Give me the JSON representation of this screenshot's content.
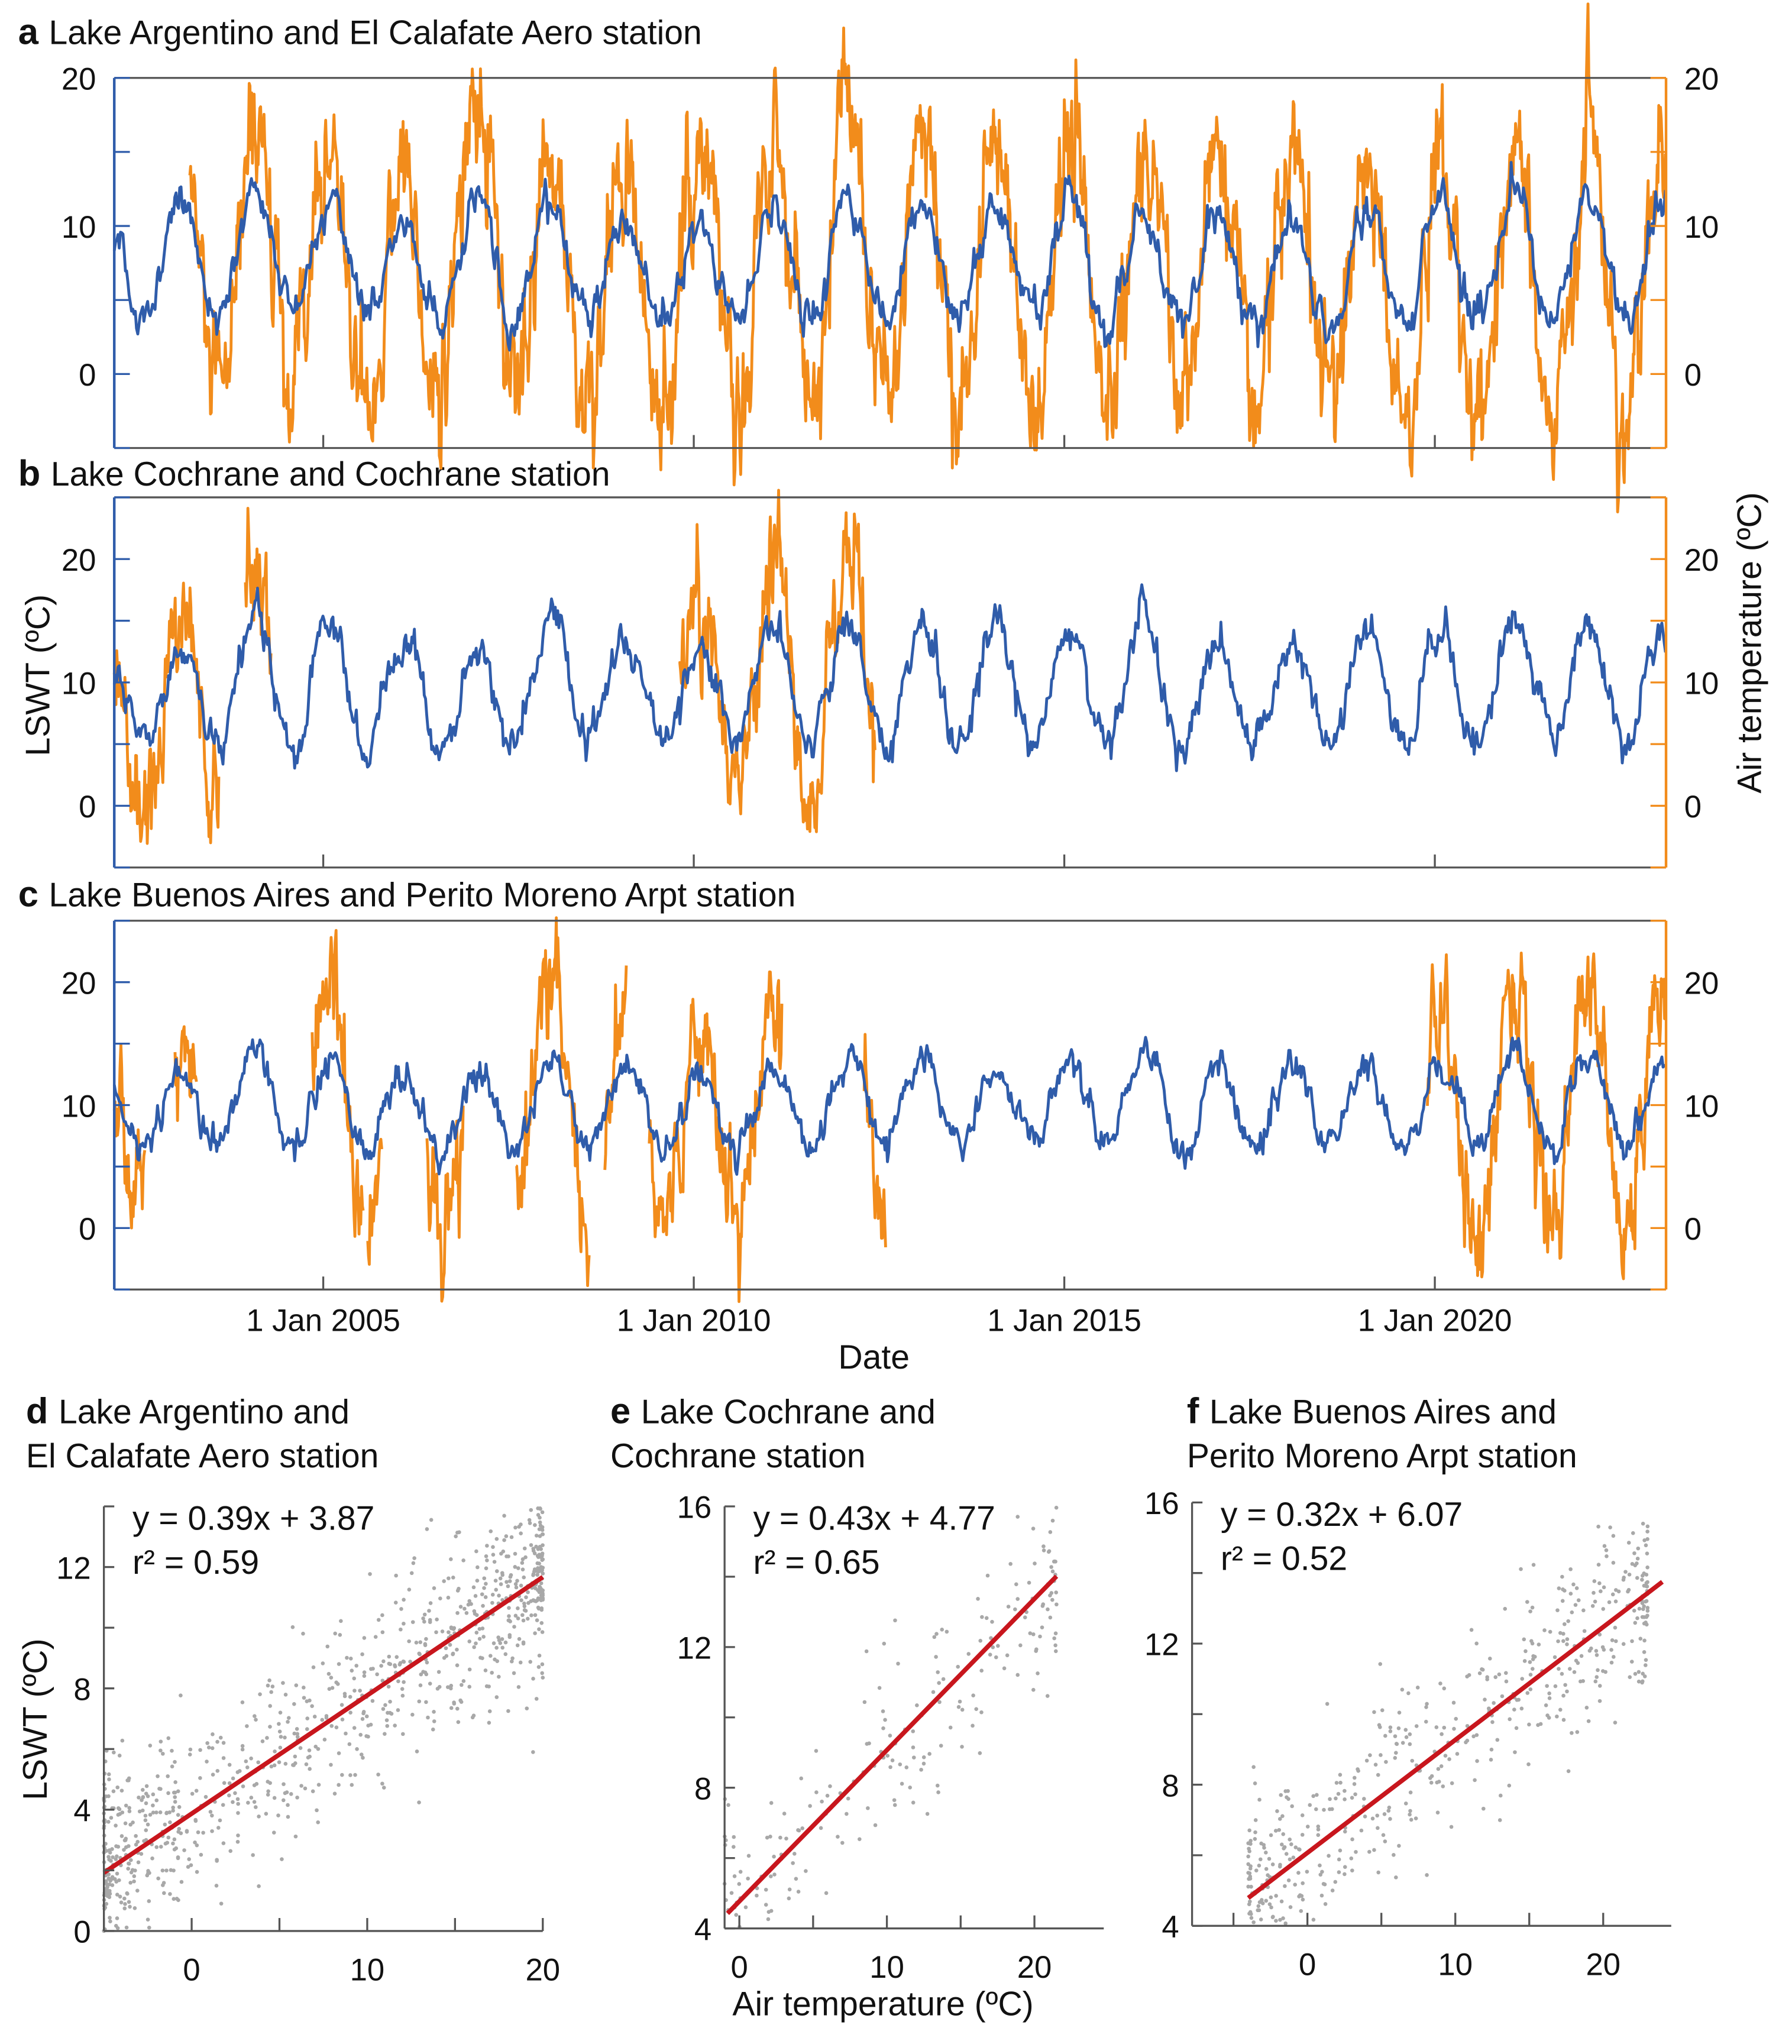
{
  "colors": {
    "lswt": "#2f5caa",
    "air": "#f28c1b",
    "fit": "#c8161d",
    "points": "#a8a8a8",
    "axis": "#555555"
  },
  "chart_data": [
    {
      "id": "a",
      "type": "line",
      "panel_label": "a",
      "title": "Lake Argentino and El Calafate Aero station",
      "xlim": [
        2002.18,
        2023.12
      ],
      "ylim_left": [
        -5,
        20
      ],
      "ylim_right": [
        -5,
        20
      ],
      "yticks_left": [
        "0",
        "10",
        "20"
      ],
      "yticks_right": [
        "0",
        "10",
        "20"
      ],
      "series": [
        {
          "name": "LSWT",
          "axis": "left",
          "color": "lswt",
          "trough_mean": 4,
          "peak_by_year": [
            9.5,
            12,
            12.5,
            11.5,
            10,
            12.3,
            11.5,
            10,
            10.5,
            11.5,
            12,
            12,
            11.5,
            12.5,
            10.5,
            10.5,
            10.5,
            11,
            11.5,
            12,
            12.2,
            11.5
          ],
          "trough_by_year": [
            3,
            3.5,
            4,
            4,
            3.5,
            3,
            3.5,
            4,
            3.5,
            3.5,
            4,
            3.5,
            4,
            3.5,
            3.5,
            3.8,
            3.5,
            3.5,
            3.5,
            3.8,
            3.8,
            3.5
          ],
          "noise": 0.6,
          "available": [
            [
              2002.18,
              2023.12
            ]
          ]
        },
        {
          "name": "Air temperature",
          "axis": "right",
          "color": "air",
          "peak_by_year": [
            9,
            16,
            17,
            15,
            14,
            19,
            15,
            14,
            15,
            17,
            18,
            17,
            16,
            16,
            15,
            15,
            15,
            15,
            15,
            15,
            17,
            16
          ],
          "trough_by_year": [
            0,
            -2,
            -3,
            -2,
            -3,
            -1,
            -3,
            -3,
            -2,
            -2,
            -2,
            -3,
            -2,
            -3,
            -1,
            -2,
            -2,
            -2,
            -3,
            -3,
            -4,
            -2
          ],
          "noise": 2,
          "available": [
            [
              2003.2,
              2023.12
            ]
          ]
        }
      ]
    },
    {
      "id": "b",
      "type": "line",
      "panel_label": "b",
      "title": "Lake Cochrane and Cochrane station",
      "xlim": [
        2002.18,
        2023.12
      ],
      "ylim_left": [
        -5,
        25
      ],
      "ylim_right": [
        -5,
        25
      ],
      "yticks_left": [
        "0",
        "10",
        "20"
      ],
      "yticks_right": [
        "0",
        "10",
        "20"
      ],
      "series": [
        {
          "name": "LSWT",
          "axis": "left",
          "color": "lswt",
          "peak_by_year": [
            12,
            12.5,
            15,
            15,
            13.5,
            12.5,
            15,
            13.5,
            13,
            14.5,
            15,
            15,
            14.5,
            14,
            15,
            13,
            13,
            14,
            14,
            15,
            15,
            14
          ],
          "trough_by_year": [
            5.5,
            5,
            5,
            4,
            5,
            5,
            5,
            5.5,
            5,
            5,
            5,
            5,
            5,
            5.5,
            5,
            5,
            5.5,
            5,
            5,
            5.5,
            5,
            5
          ],
          "noise": 0.7,
          "available": [
            [
              2002.18,
              2023.12
            ]
          ]
        },
        {
          "name": "Air temperature",
          "axis": "right",
          "color": "air",
          "peak_by_year": [
            12,
            17,
            18,
            16,
            14,
            15,
            15,
            15,
            17,
            19,
            21,
            20,
            15,
            15,
            15,
            15,
            15,
            15,
            15,
            15,
            15,
            15
          ],
          "trough_by_year": [
            0,
            -1,
            1,
            1,
            1,
            1,
            1,
            1,
            1,
            1,
            1,
            0,
            1,
            1,
            1,
            1,
            1,
            1,
            1,
            1,
            1,
            1
          ],
          "noise": 2,
          "available": [
            [
              2002.18,
              2003.6
            ],
            [
              2003.95,
              2004.3
            ],
            [
              2009.8,
              2012.45
            ]
          ]
        }
      ]
    },
    {
      "id": "c",
      "type": "line",
      "panel_label": "c",
      "title": "Lake Buenos Aires and Perito Moreno Arpt station",
      "xlim": [
        2002.18,
        2023.12
      ],
      "ylim_left": [
        -5,
        25
      ],
      "ylim_right": [
        -5,
        25
      ],
      "yticks_left": [
        "0",
        "10",
        "20"
      ],
      "yticks_right": [
        "0",
        "10",
        "20"
      ],
      "xticks": [
        "1 Jan 2005",
        "1 Jan 2010",
        "1 Jan 2015",
        "1 Jan 2020"
      ],
      "xtick_years": [
        2005,
        2010,
        2015,
        2020
      ],
      "xlabel": "Date",
      "series": [
        {
          "name": "LSWT",
          "axis": "left",
          "color": "lswt",
          "peak_by_year": [
            12,
            12.5,
            14.5,
            13.5,
            12.5,
            13,
            14,
            13,
            12.5,
            13,
            14,
            14.5,
            13.5,
            13.5,
            14.5,
            13,
            13,
            13.5,
            13.5,
            14.5,
            14,
            13.5
          ],
          "trough_by_year": [
            6.5,
            6.5,
            6.5,
            6.5,
            6,
            6.5,
            6.5,
            6.5,
            6,
            6.5,
            6.5,
            6.5,
            7,
            7,
            6.5,
            6.5,
            7,
            7,
            7,
            6.5,
            6.5,
            6.5
          ],
          "noise": 0.6,
          "available": [
            [
              2002.18,
              2023.12
            ]
          ]
        },
        {
          "name": "Air temperature",
          "axis": "right",
          "color": "air",
          "peak_by_year": [
            12,
            15,
            21,
            20,
            17,
            18,
            23,
            17,
            17,
            19,
            16,
            15,
            15,
            15,
            15,
            15,
            15,
            15,
            18,
            20,
            21,
            20
          ],
          "trough_by_year": [
            3,
            2,
            3,
            -1,
            0,
            -1,
            0,
            -1,
            0,
            0,
            1,
            1,
            1,
            1,
            1,
            1,
            1,
            1,
            -2,
            0,
            -1,
            0
          ],
          "noise": 2,
          "available": [
            [
              2002.18,
              2002.6
            ],
            [
              2003.0,
              2003.3
            ],
            [
              2004.85,
              2005.55
            ],
            [
              2005.6,
              2005.8
            ],
            [
              2006.4,
              2006.9
            ],
            [
              2007.6,
              2008.6
            ],
            [
              2008.8,
              2009.1
            ],
            [
              2009.4,
              2011.2
            ],
            [
              2012.3,
              2012.6
            ],
            [
              2019.9,
              2023.12
            ]
          ]
        }
      ]
    },
    {
      "id": "d",
      "type": "scatter",
      "panel_label": "d",
      "title_lines": [
        "Lake Argentino and",
        "El Calafate Aero station"
      ],
      "equation": "y = 0.39x + 3.87",
      "r2": "r² = 0.59",
      "slope": 0.39,
      "intercept": 3.87,
      "xlim": [
        -5,
        20
      ],
      "ylim": [
        0,
        14
      ],
      "xticks": [
        "0",
        "10",
        "20"
      ],
      "xtick_values": [
        0,
        10,
        20
      ],
      "yticks": [
        "0",
        "4",
        "8",
        "12"
      ],
      "ytick_values": [
        0,
        4,
        8,
        12
      ],
      "ylabel": "LSWT (ºC)",
      "n_points": 900,
      "point_x_range": [
        -5,
        20
      ],
      "residual_sd": 1.55,
      "fit_x_range": [
        -5,
        20
      ]
    },
    {
      "id": "e",
      "type": "scatter",
      "panel_label": "e",
      "title_lines": [
        "Lake Cochrane and",
        "Cochrane station"
      ],
      "equation": "y = 0.43x + 4.77",
      "r2": "r² = 0.65",
      "slope": 0.43,
      "intercept": 4.77,
      "xlim": [
        -1,
        24.7
      ],
      "ylim": [
        4,
        16
      ],
      "xticks": [
        "0",
        "10",
        "20"
      ],
      "xtick_values": [
        0,
        10,
        20
      ],
      "yticks": [
        "4",
        "8",
        "12",
        "16"
      ],
      "ytick_values": [
        4,
        8,
        12,
        16
      ],
      "xlabel": "Air temperature (ºC)",
      "n_points": 220,
      "point_x_range": [
        -1,
        21.5
      ],
      "residual_sd": 1.3,
      "fit_x_range": [
        -0.8,
        21.5
      ]
    },
    {
      "id": "f",
      "type": "scatter",
      "panel_label": "f",
      "title_lines": [
        "Lake Buenos Aires and",
        "Perito Moreno Arpt station"
      ],
      "equation": "y = 0.32x + 6.07",
      "r2": "r² = 0.52",
      "slope": 0.32,
      "intercept": 6.07,
      "xlim": [
        -7.8,
        24.6
      ],
      "ylim": [
        4,
        16
      ],
      "xticks": [
        "0",
        "10",
        "20"
      ],
      "xtick_values": [
        0,
        10,
        20
      ],
      "yticks": [
        "4",
        "8",
        "12",
        "16"
      ],
      "ytick_values": [
        4,
        8,
        12,
        16
      ],
      "n_points": 520,
      "point_x_range": [
        -4,
        23
      ],
      "residual_sd": 1.35,
      "fit_x_range": [
        -4,
        24
      ]
    }
  ],
  "axis_labels": {
    "left": "LSWT (ºC)",
    "right": "Air temperature (ºC)",
    "date": "Date",
    "scatter_x": "Air temperature (ºC)",
    "scatter_y": "LSWT (ºC)"
  }
}
